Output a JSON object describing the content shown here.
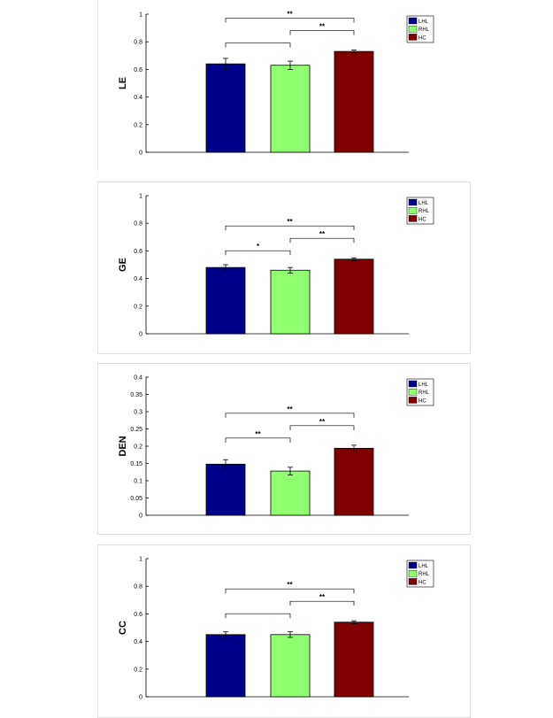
{
  "chart_data": [
    {
      "type": "bar",
      "ylabel": "LE",
      "categories": [
        "LHL",
        "RHL",
        "HC"
      ],
      "values": [
        0.64,
        0.63,
        0.73
      ],
      "errors": [
        0.04,
        0.03,
        0.01
      ],
      "ylim": [
        0,
        1
      ],
      "yticks": [
        "0",
        "0.2",
        "0.4",
        "0.6",
        "0.8",
        "1"
      ],
      "colors": [
        "#00008b",
        "#90ff70",
        "#800000"
      ],
      "legend": [
        "LHL",
        "RHL",
        "HC"
      ],
      "legend_position": "top-right",
      "grid": false,
      "annotations": [
        {
          "from": "LHL",
          "to": "RHL",
          "label": ""
        },
        {
          "from": "RHL",
          "to": "HC",
          "label": "**"
        },
        {
          "from": "LHL",
          "to": "HC",
          "label": "**"
        }
      ]
    },
    {
      "type": "bar",
      "ylabel": "GE",
      "categories": [
        "LHL",
        "RHL",
        "HC"
      ],
      "values": [
        0.48,
        0.46,
        0.54
      ],
      "errors": [
        0.02,
        0.02,
        0.01
      ],
      "ylim": [
        0,
        1
      ],
      "yticks": [
        "0",
        "0.2",
        "0.4",
        "0.6",
        "0.8",
        "1"
      ],
      "colors": [
        "#00008b",
        "#90ff70",
        "#800000"
      ],
      "legend": [
        "LHL",
        "RHL",
        "HC"
      ],
      "legend_position": "top-right",
      "grid": false,
      "annotations": [
        {
          "from": "LHL",
          "to": "RHL",
          "label": "*"
        },
        {
          "from": "RHL",
          "to": "HC",
          "label": "**"
        },
        {
          "from": "LHL",
          "to": "HC",
          "label": "**"
        }
      ]
    },
    {
      "type": "bar",
      "ylabel": "DEN",
      "categories": [
        "LHL",
        "RHL",
        "HC"
      ],
      "values": [
        0.148,
        0.128,
        0.194
      ],
      "errors": [
        0.013,
        0.011,
        0.009
      ],
      "ylim": [
        0,
        0.4
      ],
      "yticks": [
        "0",
        "0.05",
        "0.1",
        "0.15",
        "0.2",
        "0.25",
        "0.3",
        "0.35",
        "0.4"
      ],
      "colors": [
        "#00008b",
        "#90ff70",
        "#800000"
      ],
      "legend": [
        "LHL",
        "RHL",
        "HC"
      ],
      "legend_position": "top-right",
      "grid": false,
      "annotations": [
        {
          "from": "LHL",
          "to": "RHL",
          "label": "**"
        },
        {
          "from": "RHL",
          "to": "HC",
          "label": "**"
        },
        {
          "from": "LHL",
          "to": "HC",
          "label": "**"
        }
      ]
    },
    {
      "type": "bar",
      "ylabel": "CC",
      "categories": [
        "LHL",
        "RHL",
        "HC"
      ],
      "values": [
        0.45,
        0.45,
        0.54
      ],
      "errors": [
        0.02,
        0.02,
        0.01
      ],
      "ylim": [
        0,
        1
      ],
      "yticks": [
        "0",
        "0.2",
        "0.4",
        "0.6",
        "0.8",
        "1"
      ],
      "colors": [
        "#00008b",
        "#90ff70",
        "#800000"
      ],
      "legend": [
        "LHL",
        "RHL",
        "HC"
      ],
      "legend_position": "top-right",
      "grid": false,
      "annotations": [
        {
          "from": "LHL",
          "to": "RHL",
          "label": ""
        },
        {
          "from": "RHL",
          "to": "HC",
          "label": "**"
        },
        {
          "from": "LHL",
          "to": "HC",
          "label": "**"
        }
      ]
    }
  ]
}
